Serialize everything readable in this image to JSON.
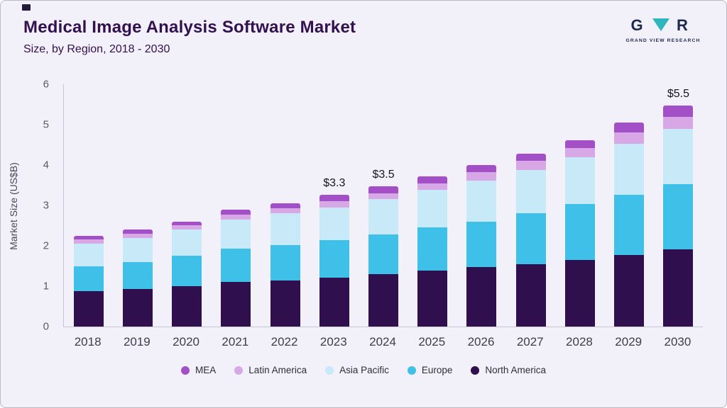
{
  "header": {
    "title": "Medical Image Analysis Software Market",
    "subtitle": "Size, by Region, 2018 - 2030",
    "brand_text": "GRAND VIEW RESEARCH",
    "brand_monogram": {
      "left": "G",
      "right": "R"
    }
  },
  "chart_data": {
    "type": "bar",
    "stacked": true,
    "title": "Medical Image Analysis Software Market Size, by Region, 2018 - 2030",
    "ylabel": "Market Size (US$B)",
    "ylim": [
      0,
      6
    ],
    "yticks": [
      0,
      1,
      2,
      3,
      4,
      5,
      6
    ],
    "grid": false,
    "legend_position": "bottom",
    "categories": [
      "2018",
      "2019",
      "2020",
      "2021",
      "2022",
      "2023",
      "2024",
      "2025",
      "2026",
      "2027",
      "2028",
      "2029",
      "2030"
    ],
    "series": [
      {
        "name": "North America",
        "color": "#2f0f4d",
        "values": [
          0.88,
          0.93,
          1.0,
          1.1,
          1.15,
          1.22,
          1.3,
          1.38,
          1.47,
          1.55,
          1.65,
          1.77,
          1.92
        ]
      },
      {
        "name": "Europe",
        "color": "#3fc0e8",
        "values": [
          0.62,
          0.67,
          0.75,
          0.83,
          0.87,
          0.93,
          0.98,
          1.07,
          1.13,
          1.25,
          1.38,
          1.5,
          1.61
        ]
      },
      {
        "name": "Asia Pacific",
        "color": "#c8e9f8",
        "values": [
          0.55,
          0.6,
          0.65,
          0.72,
          0.78,
          0.8,
          0.87,
          0.93,
          1.02,
          1.07,
          1.17,
          1.26,
          1.37
        ]
      },
      {
        "name": "Latin America",
        "color": "#d8a8e6",
        "values": [
          0.1,
          0.1,
          0.1,
          0.13,
          0.13,
          0.15,
          0.15,
          0.17,
          0.2,
          0.23,
          0.22,
          0.27,
          0.3
        ]
      },
      {
        "name": "MEA",
        "color": "#a24fc8",
        "values": [
          0.1,
          0.1,
          0.1,
          0.12,
          0.12,
          0.17,
          0.17,
          0.17,
          0.18,
          0.18,
          0.2,
          0.25,
          0.27
        ]
      }
    ],
    "legend_order": [
      "MEA",
      "Latin America",
      "Asia Pacific",
      "Europe",
      "North America"
    ],
    "annotations": [
      {
        "category": "2023",
        "label": "$3.3"
      },
      {
        "category": "2024",
        "label": "$3.5"
      },
      {
        "category": "2030",
        "label": "$5.5"
      }
    ]
  },
  "brand_colors": {
    "navy": "#1d2b50",
    "teal": "#2fb5bd"
  }
}
